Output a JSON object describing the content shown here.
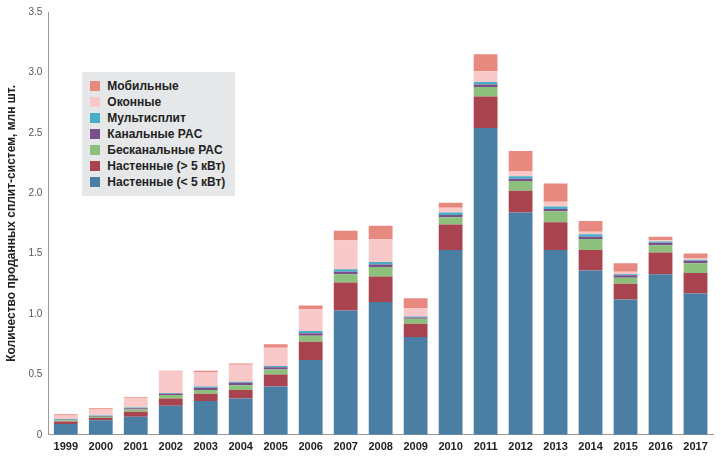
{
  "chart_data": {
    "type": "bar",
    "stacked": true,
    "grid": false,
    "legend": "top-left",
    "y_label": "Количество проданных сплит-систем, млн шт.",
    "categories": [
      "1999",
      "2000",
      "2001",
      "2002",
      "2003",
      "2004",
      "2005",
      "2006",
      "2007",
      "2008",
      "2009",
      "2010",
      "2011",
      "2012",
      "2013",
      "2014",
      "2015",
      "2016",
      "2017"
    ],
    "ylim": [
      0,
      3.5
    ],
    "yticks": [
      0,
      0.5,
      {
        "value": 1,
        "label": "1.0"
      },
      1.5,
      {
        "value": 2,
        "label": "2.0"
      },
      2.5,
      {
        "value": 3,
        "label": "3.0"
      },
      3.5
    ],
    "series": [
      {
        "name": "Настенные (< 5 кВт)",
        "color": "#4a7ea3",
        "values": [
          0.09,
          0.12,
          0.15,
          0.24,
          0.28,
          0.3,
          0.4,
          0.62,
          1.03,
          1.1,
          0.81,
          1.53,
          2.54,
          1.84,
          1.53,
          1.36,
          1.12,
          1.33,
          1.17
        ]
      },
      {
        "name": "Настенные (> 5 кВт)",
        "color": "#a8434f",
        "values": [
          0.02,
          0.02,
          0.04,
          0.06,
          0.06,
          0.07,
          0.1,
          0.15,
          0.23,
          0.21,
          0.11,
          0.21,
          0.26,
          0.18,
          0.23,
          0.17,
          0.13,
          0.18,
          0.17
        ]
      },
      {
        "name": "Бесканальные PAC",
        "color": "#8dc07c",
        "values": [
          0.01,
          0.01,
          0.02,
          0.03,
          0.03,
          0.04,
          0.04,
          0.05,
          0.07,
          0.08,
          0.04,
          0.06,
          0.08,
          0.08,
          0.09,
          0.09,
          0.05,
          0.06,
          0.08
        ]
      },
      {
        "name": "Канальные PAC",
        "color": "#7b4f8a",
        "values": [
          0.005,
          0.005,
          0.01,
          0.01,
          0.02,
          0.02,
          0.02,
          0.02,
          0.02,
          0.02,
          0.01,
          0.02,
          0.02,
          0.02,
          0.02,
          0.02,
          0.02,
          0.02,
          0.02
        ]
      },
      {
        "name": "Мультисплит",
        "color": "#4bacc6",
        "values": [
          0.005,
          0.005,
          0.005,
          0.005,
          0.01,
          0.01,
          0.01,
          0.02,
          0.02,
          0.02,
          0.01,
          0.02,
          0.02,
          0.02,
          0.02,
          0.02,
          0.01,
          0.01,
          0.01
        ]
      },
      {
        "name": "Оконные",
        "color": "#f9c8c8",
        "values": [
          0.03,
          0.05,
          0.08,
          0.18,
          0.12,
          0.14,
          0.15,
          0.18,
          0.24,
          0.19,
          0.07,
          0.04,
          0.09,
          0.04,
          0.04,
          0.02,
          0.02,
          0.01,
          0.01
        ]
      },
      {
        "name": "Мобильные",
        "color": "#e8897f",
        "values": [
          0.01,
          0.01,
          0.005,
          0.005,
          0.01,
          0.01,
          0.03,
          0.03,
          0.08,
          0.11,
          0.08,
          0.04,
          0.14,
          0.17,
          0.15,
          0.09,
          0.07,
          0.03,
          0.04
        ]
      }
    ]
  }
}
